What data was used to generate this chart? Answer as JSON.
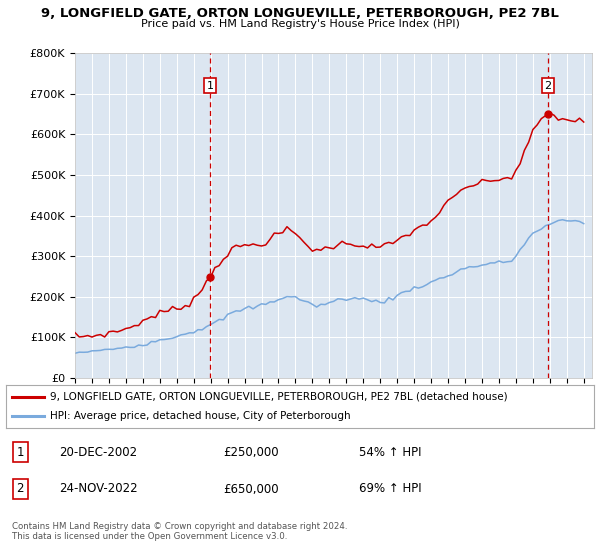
{
  "title": "9, LONGFIELD GATE, ORTON LONGUEVILLE, PETERBOROUGH, PE2 7BL",
  "subtitle": "Price paid vs. HM Land Registry's House Price Index (HPI)",
  "legend_line1": "9, LONGFIELD GATE, ORTON LONGUEVILLE, PETERBOROUGH, PE2 7BL (detached house)",
  "legend_line2": "HPI: Average price, detached house, City of Peterborough",
  "annotation1_label": "1",
  "annotation1_date": "20-DEC-2002",
  "annotation1_price": "£250,000",
  "annotation1_hpi": "54% ↑ HPI",
  "annotation2_label": "2",
  "annotation2_date": "24-NOV-2022",
  "annotation2_price": "£650,000",
  "annotation2_hpi": "69% ↑ HPI",
  "footnote": "Contains HM Land Registry data © Crown copyright and database right 2024.\nThis data is licensed under the Open Government Licence v3.0.",
  "red_color": "#cc0000",
  "blue_color": "#7aaadd",
  "background_color": "#dce6f1",
  "ylim": [
    0,
    800000
  ],
  "yticks": [
    0,
    100000,
    200000,
    300000,
    400000,
    500000,
    600000,
    700000,
    800000
  ],
  "ytick_labels": [
    "£0",
    "£100K",
    "£200K",
    "£300K",
    "£400K",
    "£500K",
    "£600K",
    "£700K",
    "£800K"
  ],
  "xlim_start": 1995.0,
  "xlim_end": 2025.5,
  "point1_x": 2002.97,
  "point1_y": 250000,
  "point2_x": 2022.9,
  "point2_y": 650000,
  "hpi_x": [
    1995.0,
    1995.25,
    1995.5,
    1995.75,
    1996.0,
    1996.25,
    1996.5,
    1996.75,
    1997.0,
    1997.25,
    1997.5,
    1997.75,
    1998.0,
    1998.25,
    1998.5,
    1998.75,
    1999.0,
    1999.25,
    1999.5,
    1999.75,
    2000.0,
    2000.25,
    2000.5,
    2000.75,
    2001.0,
    2001.25,
    2001.5,
    2001.75,
    2002.0,
    2002.25,
    2002.5,
    2002.75,
    2003.0,
    2003.25,
    2003.5,
    2003.75,
    2004.0,
    2004.25,
    2004.5,
    2004.75,
    2005.0,
    2005.25,
    2005.5,
    2005.75,
    2006.0,
    2006.25,
    2006.5,
    2006.75,
    2007.0,
    2007.25,
    2007.5,
    2007.75,
    2008.0,
    2008.25,
    2008.5,
    2008.75,
    2009.0,
    2009.25,
    2009.5,
    2009.75,
    2010.0,
    2010.25,
    2010.5,
    2010.75,
    2011.0,
    2011.25,
    2011.5,
    2011.75,
    2012.0,
    2012.25,
    2012.5,
    2012.75,
    2013.0,
    2013.25,
    2013.5,
    2013.75,
    2014.0,
    2014.25,
    2014.5,
    2014.75,
    2015.0,
    2015.25,
    2015.5,
    2015.75,
    2016.0,
    2016.25,
    2016.5,
    2016.75,
    2017.0,
    2017.25,
    2017.5,
    2017.75,
    2018.0,
    2018.25,
    2018.5,
    2018.75,
    2019.0,
    2019.25,
    2019.5,
    2019.75,
    2020.0,
    2020.25,
    2020.5,
    2020.75,
    2021.0,
    2021.25,
    2021.5,
    2021.75,
    2022.0,
    2022.25,
    2022.5,
    2022.75,
    2023.0,
    2023.25,
    2023.5,
    2023.75,
    2024.0,
    2024.25,
    2024.5,
    2024.75,
    2025.0
  ],
  "hpi_y": [
    63000,
    62000,
    63000,
    64000,
    65000,
    66000,
    67000,
    68000,
    70000,
    72000,
    74000,
    75000,
    76000,
    78000,
    80000,
    81000,
    83000,
    86000,
    89000,
    91000,
    93000,
    96000,
    99000,
    101000,
    103000,
    107000,
    110000,
    112000,
    115000,
    119000,
    123000,
    127000,
    130000,
    135000,
    140000,
    147000,
    155000,
    158000,
    163000,
    167000,
    170000,
    172000,
    174000,
    176000,
    180000,
    183000,
    186000,
    190000,
    195000,
    198000,
    200000,
    200000,
    198000,
    195000,
    190000,
    185000,
    180000,
    178000,
    180000,
    182000,
    185000,
    188000,
    192000,
    194000,
    196000,
    198000,
    196000,
    195000,
    194000,
    192000,
    190000,
    189000,
    188000,
    190000,
    193000,
    197000,
    202000,
    208000,
    213000,
    218000,
    222000,
    225000,
    228000,
    231000,
    235000,
    240000,
    244000,
    248000,
    252000,
    257000,
    262000,
    267000,
    270000,
    273000,
    275000,
    276000,
    278000,
    280000,
    282000,
    283000,
    284000,
    285000,
    287000,
    290000,
    300000,
    315000,
    330000,
    345000,
    355000,
    362000,
    368000,
    373000,
    378000,
    382000,
    385000,
    387000,
    388000,
    388000,
    387000,
    386000,
    385000
  ],
  "red_x": [
    1995.0,
    1995.25,
    1995.5,
    1995.75,
    1996.0,
    1996.25,
    1996.5,
    1996.75,
    1997.0,
    1997.25,
    1997.5,
    1997.75,
    1998.0,
    1998.25,
    1998.5,
    1998.75,
    1999.0,
    1999.25,
    1999.5,
    1999.75,
    2000.0,
    2000.25,
    2000.5,
    2000.75,
    2001.0,
    2001.25,
    2001.5,
    2001.75,
    2002.0,
    2002.25,
    2002.5,
    2002.75,
    2003.0,
    2003.25,
    2003.5,
    2003.75,
    2004.0,
    2004.25,
    2004.5,
    2004.75,
    2005.0,
    2005.25,
    2005.5,
    2005.75,
    2006.0,
    2006.25,
    2006.5,
    2006.75,
    2007.0,
    2007.25,
    2007.5,
    2007.75,
    2008.0,
    2008.25,
    2008.5,
    2008.75,
    2009.0,
    2009.25,
    2009.5,
    2009.75,
    2010.0,
    2010.25,
    2010.5,
    2010.75,
    2011.0,
    2011.25,
    2011.5,
    2011.75,
    2012.0,
    2012.25,
    2012.5,
    2012.75,
    2013.0,
    2013.25,
    2013.5,
    2013.75,
    2014.0,
    2014.25,
    2014.5,
    2014.75,
    2015.0,
    2015.25,
    2015.5,
    2015.75,
    2016.0,
    2016.25,
    2016.5,
    2016.75,
    2017.0,
    2017.25,
    2017.5,
    2017.75,
    2018.0,
    2018.25,
    2018.5,
    2018.75,
    2019.0,
    2019.25,
    2019.5,
    2019.75,
    2020.0,
    2020.25,
    2020.5,
    2020.75,
    2021.0,
    2021.25,
    2021.5,
    2021.75,
    2022.0,
    2022.25,
    2022.5,
    2022.75,
    2023.0,
    2023.25,
    2023.5,
    2023.75,
    2024.0,
    2024.25,
    2024.5,
    2024.75,
    2025.0
  ],
  "red_y": [
    105000,
    103000,
    102000,
    103000,
    104000,
    105000,
    107000,
    108000,
    110000,
    113000,
    116000,
    118000,
    120000,
    125000,
    130000,
    135000,
    140000,
    145000,
    150000,
    155000,
    160000,
    163000,
    166000,
    168000,
    170000,
    175000,
    180000,
    185000,
    195000,
    207000,
    220000,
    235000,
    255000,
    270000,
    285000,
    295000,
    305000,
    315000,
    320000,
    325000,
    325000,
    327000,
    328000,
    330000,
    332000,
    335000,
    340000,
    348000,
    355000,
    360000,
    365000,
    362000,
    355000,
    345000,
    335000,
    325000,
    318000,
    315000,
    315000,
    318000,
    322000,
    326000,
    328000,
    330000,
    332000,
    333000,
    330000,
    328000,
    326000,
    325000,
    324000,
    323000,
    322000,
    325000,
    328000,
    332000,
    338000,
    345000,
    352000,
    358000,
    362000,
    368000,
    375000,
    380000,
    388000,
    398000,
    408000,
    420000,
    432000,
    442000,
    450000,
    460000,
    468000,
    472000,
    476000,
    478000,
    480000,
    483000,
    486000,
    488000,
    490000,
    490000,
    492000,
    496000,
    510000,
    530000,
    555000,
    580000,
    605000,
    625000,
    640000,
    645000,
    648000,
    645000,
    640000,
    638000,
    636000,
    635000,
    634000,
    633000,
    632000
  ]
}
